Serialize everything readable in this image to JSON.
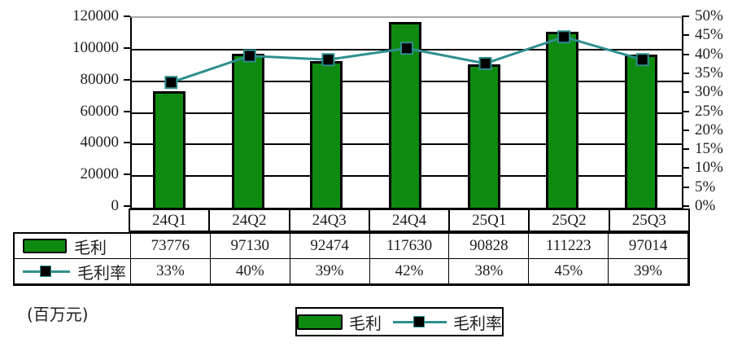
{
  "unit_label": "(百万元)",
  "colors": {
    "bar_fill": "#0f8a10",
    "line_stroke": "#2f8f8f",
    "marker_fill": "#000000",
    "plot_top_border": "#a8a8a8",
    "axis_line": "#000000",
    "text": "#1f1f1f"
  },
  "chart_data": {
    "type": "combo-bar-line",
    "title": "",
    "xlabel": "",
    "ylabel": "",
    "categories": [
      "24Q1",
      "24Q2",
      "24Q3",
      "24Q4",
      "25Q1",
      "25Q2",
      "25Q3"
    ],
    "series": [
      {
        "name": "毛利",
        "type": "bar",
        "axis": "left",
        "values": [
          73776,
          97130,
          92474,
          117630,
          90828,
          111223,
          97014
        ],
        "labels": [
          "73776",
          "97130",
          "92474",
          "117630",
          "90828",
          "111223",
          "97014"
        ]
      },
      {
        "name": "毛利率",
        "type": "line",
        "axis": "right",
        "marker": "black-square",
        "values": [
          33,
          40,
          39,
          42,
          38,
          45,
          39
        ],
        "labels": [
          "33%",
          "40%",
          "39%",
          "42%",
          "38%",
          "45%",
          "39%"
        ]
      }
    ],
    "left_axis": {
      "min": 0,
      "max": 120000,
      "step": 20000,
      "tick_labels": [
        "0",
        "20000",
        "40000",
        "60000",
        "80000",
        "100000",
        "120000"
      ]
    },
    "right_axis": {
      "min": 0,
      "max": 50,
      "step": 5,
      "tick_labels": [
        "0%",
        "5%",
        "10%",
        "15%",
        "20%",
        "25%",
        "30%",
        "35%",
        "40%",
        "45%",
        "50%"
      ]
    },
    "grid": true,
    "legend_position": "bottom",
    "data_table_shown": true
  }
}
